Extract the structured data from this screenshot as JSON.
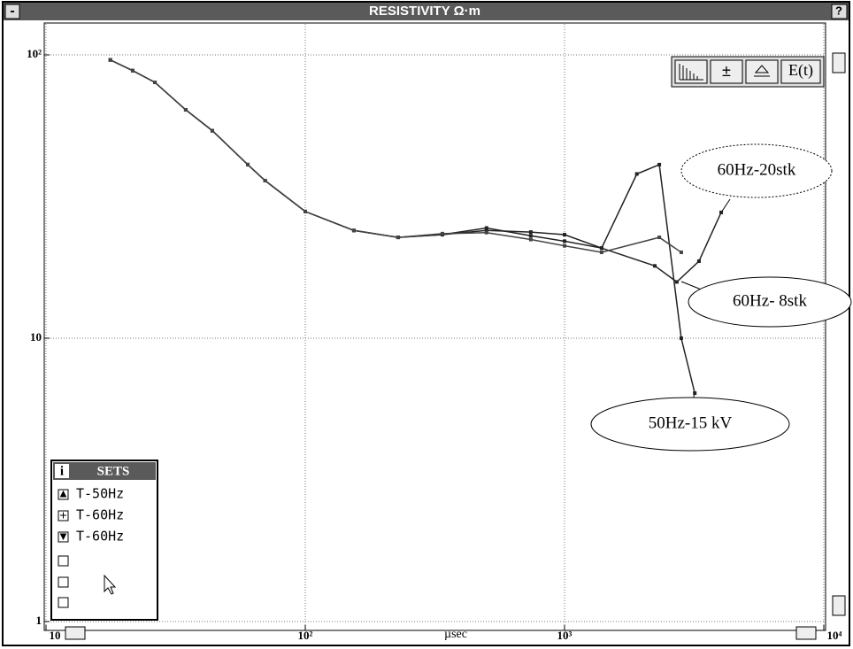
{
  "window": {
    "title": "RESISTIVITY Ω·m",
    "menu_button": "-",
    "help_button": "?",
    "toolbar": [
      "±",
      "E(t)"
    ]
  },
  "chart_data": {
    "type": "line",
    "xlabel": "µsec",
    "log_x": true,
    "log_y": true,
    "grid": true,
    "xlim": [
      10,
      10000
    ],
    "ylim": [
      1,
      100
    ],
    "xticks": [
      10,
      {
        "value": 100,
        "label": "10²"
      },
      {
        "value": 1000,
        "label": "10³"
      },
      {
        "value": 10000,
        "label": "10⁴"
      }
    ],
    "yticks": [
      1,
      10,
      {
        "value": 100,
        "label": "10²"
      }
    ],
    "legend_title": "SETS",
    "legend_info": "i",
    "series": [
      {
        "name": "T-50Hz",
        "color": "#222222",
        "x": [
          17.7,
          21.6,
          26.3,
          34.6,
          43.8,
          60,
          70,
          100,
          154,
          228,
          338,
          500,
          741,
          1000,
          1390,
          1900,
          2320,
          2820,
          3180
        ],
        "values": [
          96,
          88,
          80,
          64,
          54,
          41,
          36,
          28,
          24,
          22.7,
          23.2,
          24,
          23.7,
          23.2,
          20.8,
          38,
          41,
          10,
          6.4
        ]
      },
      {
        "name": "T-60Hz",
        "color": "#222222",
        "x": [
          17.7,
          21.6,
          26.3,
          34.6,
          43.8,
          60,
          70,
          100,
          154,
          228,
          338,
          500,
          741,
          1000,
          1390,
          2230,
          2710,
          3300,
          4020
        ],
        "values": [
          96,
          88,
          80,
          64,
          54,
          41,
          36,
          28,
          24,
          22.7,
          23.2,
          24.5,
          23,
          22,
          20.8,
          18,
          15.8,
          18.7,
          27.8
        ]
      },
      {
        "name": "T-60Hz",
        "color": "#444444",
        "x": [
          17.7,
          21.6,
          26.3,
          34.6,
          43.8,
          60,
          70,
          100,
          154,
          228,
          338,
          500,
          741,
          1000,
          1390,
          2320,
          2820
        ],
        "values": [
          96,
          88,
          80,
          64,
          54,
          41,
          36,
          28,
          24,
          22.7,
          23.4,
          23.6,
          22.3,
          21.2,
          20.1,
          22.7,
          20.1
        ]
      }
    ],
    "annotations": [
      "60Hz-20stk",
      "60Hz- 8stk",
      "50Hz-15 kV"
    ]
  }
}
